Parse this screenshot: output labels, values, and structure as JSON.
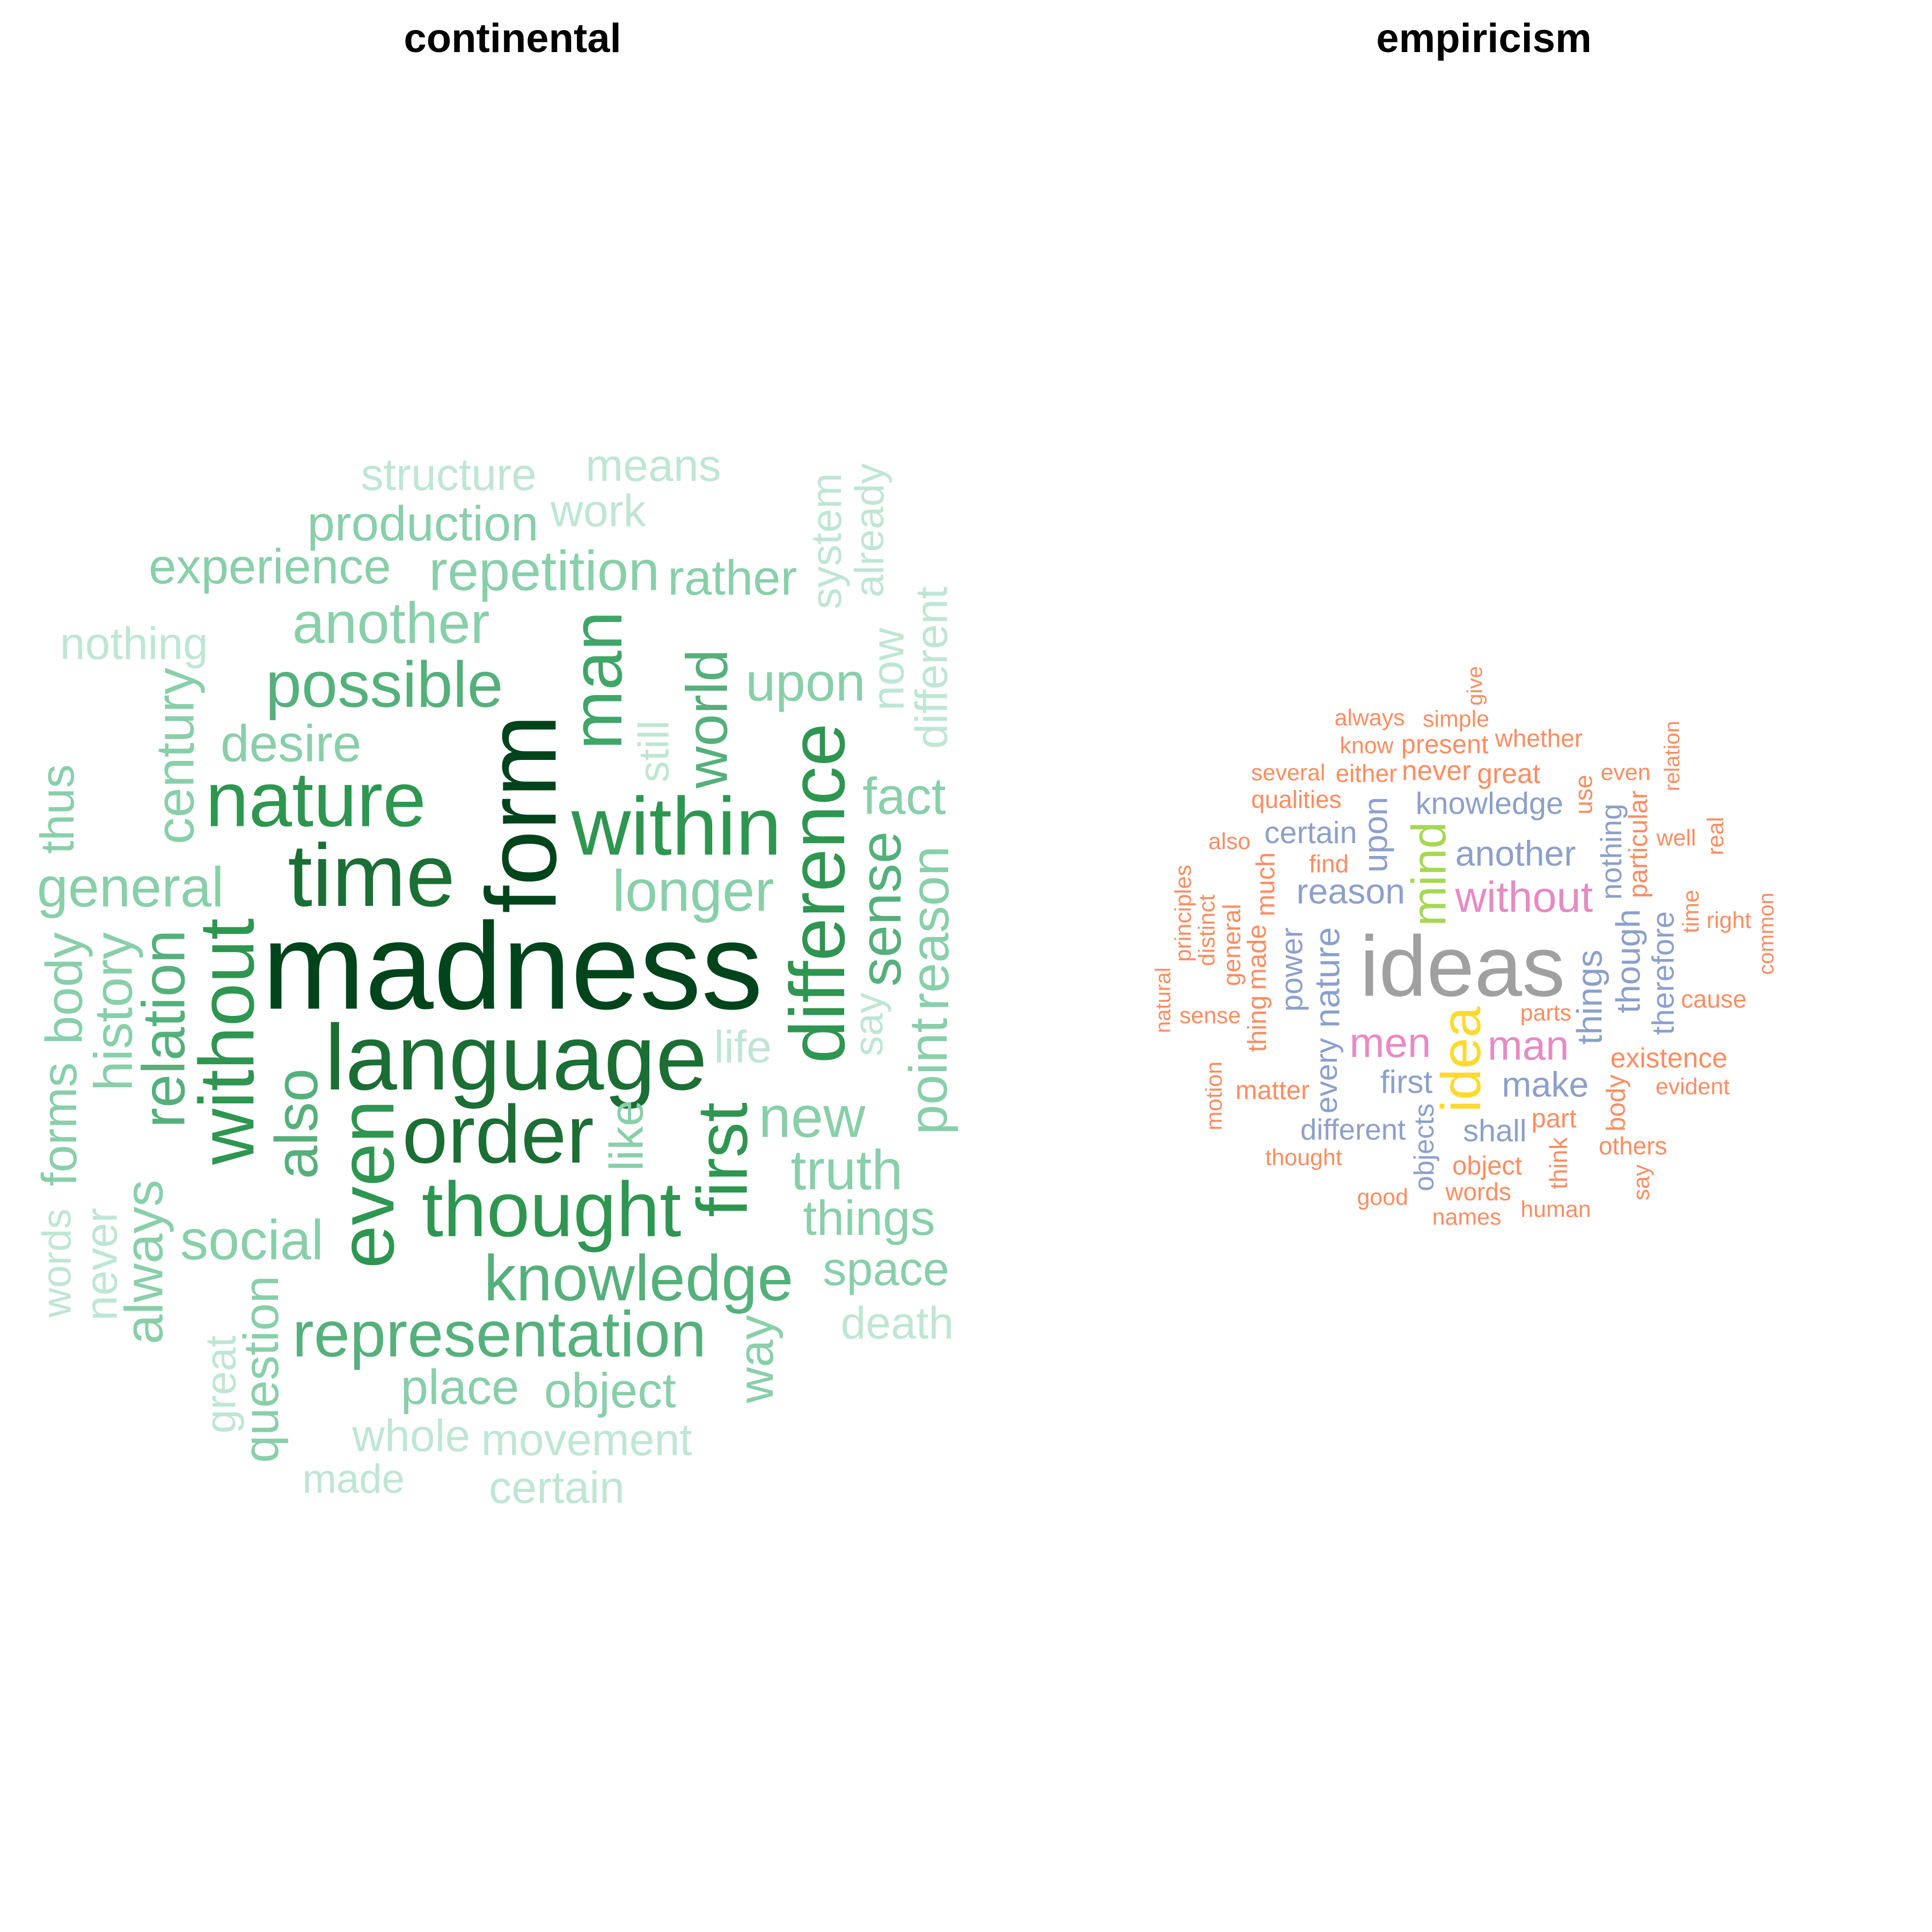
{
  "chart_data": [
    {
      "type": "wordcloud",
      "title": "continental",
      "colors": {
        "darkest": "#00441b",
        "dark": "#1b6e34",
        "mid": "#2e9650",
        "mid2": "#55b07b",
        "light": "#88cfaa",
        "lighter": "#bfe6d4"
      },
      "words": [
        {
          "text": "madness",
          "weight": 100,
          "color": "#00441b"
        },
        {
          "text": "form",
          "weight": 78,
          "color": "#00441b",
          "rotate": true
        },
        {
          "text": "language",
          "weight": 72,
          "color": "#1b6e34"
        },
        {
          "text": "time",
          "weight": 68,
          "color": "#1b6e34"
        },
        {
          "text": "order",
          "weight": 62,
          "color": "#1b6e34"
        },
        {
          "text": "within",
          "weight": 62,
          "color": "#2e9650"
        },
        {
          "text": "thought",
          "weight": 58,
          "color": "#2e9650"
        },
        {
          "text": "nature",
          "weight": 58,
          "color": "#2e9650"
        },
        {
          "text": "without",
          "weight": 58,
          "color": "#2e9650",
          "rotate": true
        },
        {
          "text": "even",
          "weight": 58,
          "color": "#2e9650",
          "rotate": true
        },
        {
          "text": "difference",
          "weight": 58,
          "color": "#2e9650",
          "rotate": true
        },
        {
          "text": "first",
          "weight": 52,
          "color": "#2e9650",
          "rotate": true
        },
        {
          "text": "man",
          "weight": 52,
          "color": "#3fa668",
          "rotate": true
        },
        {
          "text": "possible",
          "weight": 46,
          "color": "#55b07b"
        },
        {
          "text": "knowledge",
          "weight": 46,
          "color": "#55b07b"
        },
        {
          "text": "representation",
          "weight": 46,
          "color": "#55b07b"
        },
        {
          "text": "also",
          "weight": 42,
          "color": "#55b07b",
          "rotate": true
        },
        {
          "text": "relation",
          "weight": 42,
          "color": "#55b07b",
          "rotate": true
        },
        {
          "text": "world",
          "weight": 40,
          "color": "#55b07b",
          "rotate": true
        },
        {
          "text": "sense",
          "weight": 40,
          "color": "#55b07b",
          "rotate": true
        },
        {
          "text": "another",
          "weight": 40,
          "color": "#88cfaa"
        },
        {
          "text": "longer",
          "weight": 40,
          "color": "#88cfaa"
        },
        {
          "text": "new",
          "weight": 40,
          "color": "#88cfaa"
        },
        {
          "text": "general",
          "weight": 38,
          "color": "#88cfaa"
        },
        {
          "text": "repetition",
          "weight": 38,
          "color": "#88cfaa"
        },
        {
          "text": "social",
          "weight": 38,
          "color": "#88cfaa"
        },
        {
          "text": "truth",
          "weight": 38,
          "color": "#88cfaa"
        },
        {
          "text": "upon",
          "weight": 36,
          "color": "#88cfaa"
        },
        {
          "text": "history",
          "weight": 36,
          "color": "#88cfaa",
          "rotate": true
        },
        {
          "text": "century",
          "weight": 36,
          "color": "#88cfaa",
          "rotate": true
        },
        {
          "text": "reason",
          "weight": 36,
          "color": "#88cfaa",
          "rotate": true
        },
        {
          "text": "always",
          "weight": 36,
          "color": "#88cfaa",
          "rotate": true
        },
        {
          "text": "point",
          "weight": 36,
          "color": "#88cfaa",
          "rotate": true
        },
        {
          "text": "body",
          "weight": 34,
          "color": "#88cfaa",
          "rotate": true
        },
        {
          "text": "desire",
          "weight": 34,
          "color": "#88cfaa"
        },
        {
          "text": "fact",
          "weight": 34,
          "color": "#88cfaa"
        },
        {
          "text": "things",
          "weight": 32,
          "color": "#88cfaa"
        },
        {
          "text": "place",
          "weight": 32,
          "color": "#88cfaa"
        },
        {
          "text": "object",
          "weight": 32,
          "color": "#88cfaa"
        },
        {
          "text": "production",
          "weight": 32,
          "color": "#88cfaa"
        },
        {
          "text": "experience",
          "weight": 32,
          "color": "#88cfaa"
        },
        {
          "text": "rather",
          "weight": 32,
          "color": "#88cfaa"
        },
        {
          "text": "question",
          "weight": 32,
          "color": "#88cfaa",
          "rotate": true
        },
        {
          "text": "forms",
          "weight": 32,
          "color": "#88cfaa",
          "rotate": true
        },
        {
          "text": "way",
          "weight": 32,
          "color": "#88cfaa",
          "rotate": true
        },
        {
          "text": "like",
          "weight": 30,
          "color": "#88cfaa",
          "rotate": true
        },
        {
          "text": "thus",
          "weight": 30,
          "color": "#88cfaa",
          "rotate": true
        },
        {
          "text": "space",
          "weight": 30,
          "color": "#88cfaa"
        },
        {
          "text": "movement",
          "weight": 28,
          "color": "#bfe6d4"
        },
        {
          "text": "nothing",
          "weight": 28,
          "color": "#bfe6d4"
        },
        {
          "text": "work",
          "weight": 28,
          "color": "#bfe6d4"
        },
        {
          "text": "structure",
          "weight": 28,
          "color": "#bfe6d4"
        },
        {
          "text": "whole",
          "weight": 28,
          "color": "#bfe6d4"
        },
        {
          "text": "means",
          "weight": 28,
          "color": "#bfe6d4"
        },
        {
          "text": "certain",
          "weight": 28,
          "color": "#bfe6d4"
        },
        {
          "text": "death",
          "weight": 28,
          "color": "#bfe6d4"
        },
        {
          "text": "life",
          "weight": 28,
          "color": "#bfe6d4"
        },
        {
          "text": "now",
          "weight": 28,
          "color": "#bfe6d4",
          "rotate": true
        },
        {
          "text": "never",
          "weight": 28,
          "color": "#bfe6d4",
          "rotate": true
        },
        {
          "text": "different",
          "weight": 28,
          "color": "#bfe6d4",
          "rotate": true
        },
        {
          "text": "great",
          "weight": 26,
          "color": "#bfe6d4",
          "rotate": true
        },
        {
          "text": "still",
          "weight": 26,
          "color": "#bfe6d4",
          "rotate": true
        },
        {
          "text": "system",
          "weight": 26,
          "color": "#bfe6d4",
          "rotate": true
        },
        {
          "text": "say",
          "weight": 24,
          "color": "#bfe6d4",
          "rotate": true
        },
        {
          "text": "made",
          "weight": 24,
          "color": "#bfe6d4"
        },
        {
          "text": "words",
          "weight": 24,
          "color": "#bfe6d4",
          "rotate": true
        },
        {
          "text": "already",
          "weight": 24,
          "color": "#bfe6d4",
          "rotate": true
        }
      ]
    },
    {
      "type": "wordcloud",
      "title": "empiricism",
      "colors": {
        "grey": "#a0a0a0",
        "yellow": "#ffd92f",
        "green": "#a6d854",
        "pink": "#e78ac3",
        "blue": "#8da0cb",
        "orange": "#fc8d62"
      },
      "words": [
        {
          "text": "ideas",
          "weight": 100,
          "color": "#a0a0a0"
        },
        {
          "text": "idea",
          "weight": 62,
          "color": "#ffd92f",
          "rotate": true
        },
        {
          "text": "mind",
          "weight": 52,
          "color": "#a6d854",
          "rotate": true
        },
        {
          "text": "without",
          "weight": 46,
          "color": "#e78ac3"
        },
        {
          "text": "man",
          "weight": 44,
          "color": "#e78ac3"
        },
        {
          "text": "men",
          "weight": 44,
          "color": "#e78ac3"
        },
        {
          "text": "another",
          "weight": 36,
          "color": "#8da0cb"
        },
        {
          "text": "reason",
          "weight": 36,
          "color": "#8da0cb"
        },
        {
          "text": "make",
          "weight": 36,
          "color": "#8da0cb"
        },
        {
          "text": "things",
          "weight": 36,
          "color": "#8da0cb",
          "rotate": true
        },
        {
          "text": "nature",
          "weight": 36,
          "color": "#8da0cb",
          "rotate": true
        },
        {
          "text": "though",
          "weight": 34,
          "color": "#8da0cb",
          "rotate": true
        },
        {
          "text": "upon",
          "weight": 34,
          "color": "#8da0cb",
          "rotate": true
        },
        {
          "text": "first",
          "weight": 32,
          "color": "#8da0cb"
        },
        {
          "text": "power",
          "weight": 30,
          "color": "#8da0cb",
          "rotate": true
        },
        {
          "text": "therefore",
          "weight": 30,
          "color": "#8da0cb",
          "rotate": true
        },
        {
          "text": "every",
          "weight": 30,
          "color": "#8da0cb",
          "rotate": true
        },
        {
          "text": "knowledge",
          "weight": 30,
          "color": "#8da0cb"
        },
        {
          "text": "shall",
          "weight": 30,
          "color": "#8da0cb"
        },
        {
          "text": "certain",
          "weight": 30,
          "color": "#8da0cb"
        },
        {
          "text": "different",
          "weight": 28,
          "color": "#8da0cb"
        },
        {
          "text": "nothing",
          "weight": 28,
          "color": "#8da0cb",
          "rotate": true
        },
        {
          "text": "objects",
          "weight": 26,
          "color": "#8da0cb",
          "rotate": true
        },
        {
          "text": "never",
          "weight": 26,
          "color": "#fc8d62"
        },
        {
          "text": "existence",
          "weight": 26,
          "color": "#fc8d62"
        },
        {
          "text": "great",
          "weight": 26,
          "color": "#fc8d62"
        },
        {
          "text": "object",
          "weight": 24,
          "color": "#fc8d62"
        },
        {
          "text": "part",
          "weight": 24,
          "color": "#fc8d62"
        },
        {
          "text": "made",
          "weight": 24,
          "color": "#fc8d62",
          "rotate": true
        },
        {
          "text": "much",
          "weight": 24,
          "color": "#fc8d62",
          "rotate": true
        },
        {
          "text": "body",
          "weight": 24,
          "color": "#fc8d62",
          "rotate": true
        },
        {
          "text": "thing",
          "weight": 24,
          "color": "#fc8d62",
          "rotate": true
        },
        {
          "text": "particular",
          "weight": 24,
          "color": "#fc8d62",
          "rotate": true
        },
        {
          "text": "matter",
          "weight": 24,
          "color": "#fc8d62"
        },
        {
          "text": "present",
          "weight": 24,
          "color": "#fc8d62"
        },
        {
          "text": "qualities",
          "weight": 22,
          "color": "#fc8d62"
        },
        {
          "text": "whether",
          "weight": 22,
          "color": "#fc8d62"
        },
        {
          "text": "use",
          "weight": 22,
          "color": "#fc8d62",
          "rotate": true
        },
        {
          "text": "find",
          "weight": 22,
          "color": "#fc8d62"
        },
        {
          "text": "either",
          "weight": 22,
          "color": "#fc8d62"
        },
        {
          "text": "words",
          "weight": 22,
          "color": "#fc8d62"
        },
        {
          "text": "think",
          "weight": 22,
          "color": "#fc8d62",
          "rotate": true
        },
        {
          "text": "general",
          "weight": 22,
          "color": "#fc8d62",
          "rotate": true
        },
        {
          "text": "others",
          "weight": 22,
          "color": "#fc8d62"
        },
        {
          "text": "cause",
          "weight": 22,
          "color": "#fc8d62"
        },
        {
          "text": "parts",
          "weight": 20,
          "color": "#fc8d62"
        },
        {
          "text": "know",
          "weight": 20,
          "color": "#fc8d62"
        },
        {
          "text": "time",
          "weight": 20,
          "color": "#fc8d62",
          "rotate": true
        },
        {
          "text": "thought",
          "weight": 20,
          "color": "#fc8d62"
        },
        {
          "text": "simple",
          "weight": 20,
          "color": "#fc8d62"
        },
        {
          "text": "evident",
          "weight": 20,
          "color": "#fc8d62"
        },
        {
          "text": "sense",
          "weight": 20,
          "color": "#fc8d62"
        },
        {
          "text": "good",
          "weight": 20,
          "color": "#fc8d62"
        },
        {
          "text": "well",
          "weight": 20,
          "color": "#fc8d62"
        },
        {
          "text": "names",
          "weight": 20,
          "color": "#fc8d62"
        },
        {
          "text": "even",
          "weight": 20,
          "color": "#fc8d62"
        },
        {
          "text": "also",
          "weight": 20,
          "color": "#fc8d62"
        },
        {
          "text": "several",
          "weight": 20,
          "color": "#fc8d62"
        },
        {
          "text": "human",
          "weight": 20,
          "color": "#fc8d62"
        },
        {
          "text": "right",
          "weight": 20,
          "color": "#fc8d62"
        },
        {
          "text": "always",
          "weight": 20,
          "color": "#fc8d62"
        },
        {
          "text": "distinct",
          "weight": 20,
          "color": "#fc8d62",
          "rotate": true
        },
        {
          "text": "motion",
          "weight": 20,
          "color": "#fc8d62",
          "rotate": true
        },
        {
          "text": "principles",
          "weight": 20,
          "color": "#fc8d62",
          "rotate": true
        },
        {
          "text": "real",
          "weight": 20,
          "color": "#fc8d62",
          "rotate": true
        },
        {
          "text": "say",
          "weight": 20,
          "color": "#fc8d62",
          "rotate": true
        },
        {
          "text": "give",
          "weight": 18,
          "color": "#fc8d62",
          "rotate": true
        },
        {
          "text": "relation",
          "weight": 18,
          "color": "#fc8d62",
          "rotate": true
        },
        {
          "text": "common",
          "weight": 18,
          "color": "#fc8d62",
          "rotate": true
        },
        {
          "text": "natural",
          "weight": 18,
          "color": "#fc8d62",
          "rotate": true
        }
      ]
    }
  ]
}
